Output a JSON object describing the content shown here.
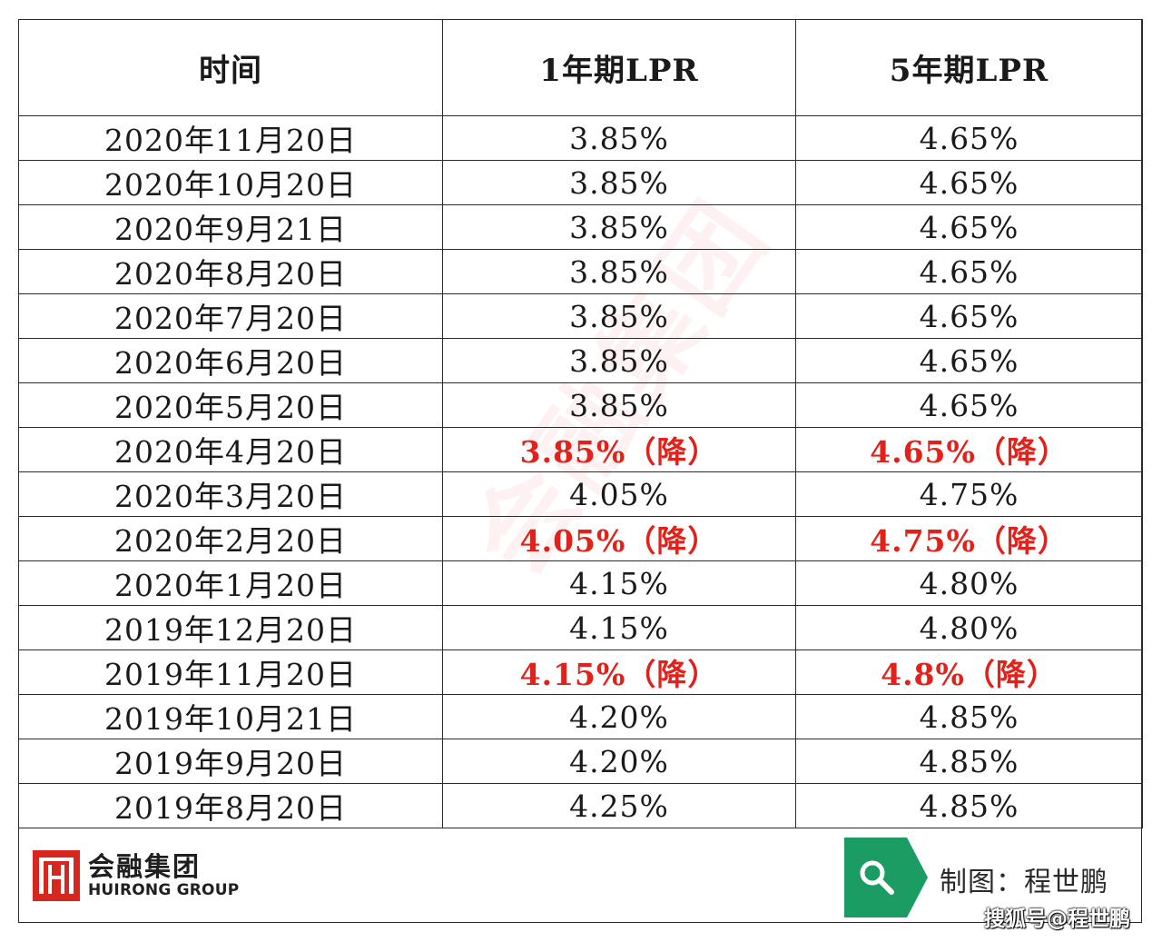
{
  "table": {
    "headers": [
      "时间",
      "1年期LPR",
      "5年期LPR"
    ],
    "rows": [
      {
        "date": "2020年11月20日",
        "lpr1": "3.85%",
        "lpr5": "4.65%",
        "cut": false
      },
      {
        "date": "2020年10月20日",
        "lpr1": "3.85%",
        "lpr5": "4.65%",
        "cut": false
      },
      {
        "date": "2020年9月21日",
        "lpr1": "3.85%",
        "lpr5": "4.65%",
        "cut": false
      },
      {
        "date": "2020年8月20日",
        "lpr1": "3.85%",
        "lpr5": "4.65%",
        "cut": false
      },
      {
        "date": "2020年7月20日",
        "lpr1": "3.85%",
        "lpr5": "4.65%",
        "cut": false
      },
      {
        "date": "2020年6月20日",
        "lpr1": "3.85%",
        "lpr5": "4.65%",
        "cut": false
      },
      {
        "date": "2020年5月20日",
        "lpr1": "3.85%",
        "lpr5": "4.65%",
        "cut": false
      },
      {
        "date": "2020年4月20日",
        "lpr1": "3.85%（降）",
        "lpr5": "4.65%（降）",
        "cut": true
      },
      {
        "date": "2020年3月20日",
        "lpr1": "4.05%",
        "lpr5": "4.75%",
        "cut": false
      },
      {
        "date": "2020年2月20日",
        "lpr1": "4.05%（降）",
        "lpr5": "4.75%（降）",
        "cut": true
      },
      {
        "date": "2020年1月20日",
        "lpr1": "4.15%",
        "lpr5": "4.80%",
        "cut": false
      },
      {
        "date": "2019年12月20日",
        "lpr1": "4.15%",
        "lpr5": "4.80%",
        "cut": false
      },
      {
        "date": "2019年11月20日",
        "lpr1": "4.15%（降）",
        "lpr5": "4.8%（降）",
        "cut": true
      },
      {
        "date": "2019年10月21日",
        "lpr1": "4.20%",
        "lpr5": "4.85%",
        "cut": false
      },
      {
        "date": "2019年9月20日",
        "lpr1": "4.20%",
        "lpr5": "4.85%",
        "cut": false
      },
      {
        "date": "2019年8月20日",
        "lpr1": "4.25%",
        "lpr5": "4.85%",
        "cut": false
      }
    ]
  },
  "colors": {
    "cut_text": "#e0221b",
    "logo_red": "#d7261e",
    "credit_green": "#1a9c63"
  },
  "logo": {
    "cn": "会融集团",
    "en": "HUIRONG GROUP"
  },
  "watermark": "会融集团",
  "credit": {
    "icon": "search-icon",
    "main": "制图：程世鹏",
    "sub": "搜狐号@程世鹏"
  }
}
